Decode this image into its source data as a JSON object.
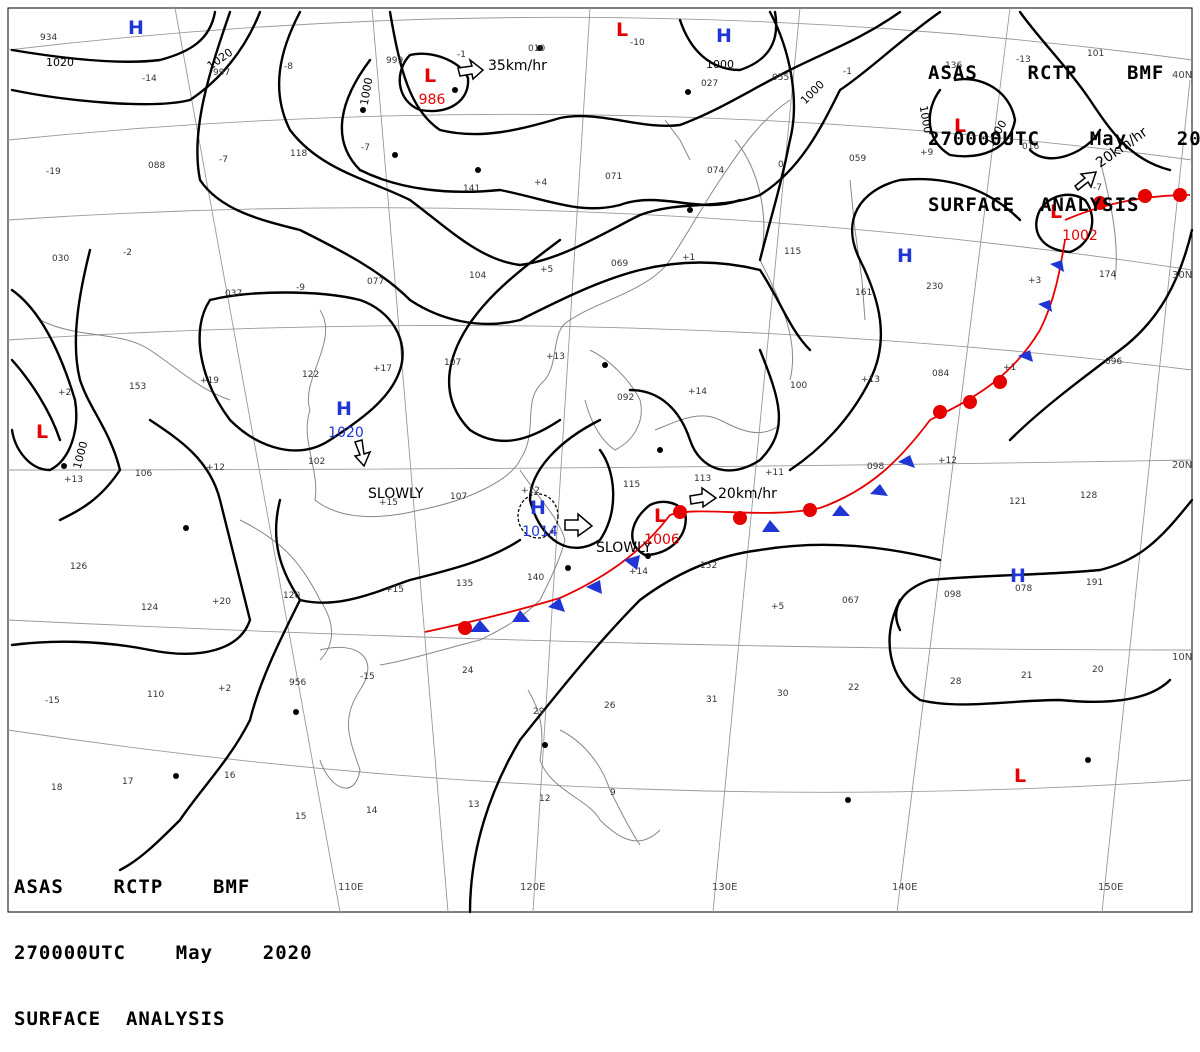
{
  "header": {
    "line1": "ASAS    RCTP    BMF",
    "line2": "270000UTC    May    2020",
    "line3": "SURFACE  ANALYSIS"
  },
  "colors": {
    "isobar": "#000000",
    "low": "#e60000",
    "high": "#1f35d6",
    "coast": "#888888",
    "grid": "#999999"
  },
  "lon_labels": [
    "110E",
    "120E",
    "130E",
    "140E",
    "150E"
  ],
  "lat_labels": [
    "40N",
    "30N",
    "20N",
    "10N"
  ],
  "pressure_centers": [
    {
      "type": "H",
      "value": ""
    },
    {
      "type": "L",
      "value": "986"
    },
    {
      "type": "H",
      "value": ""
    },
    {
      "type": "L",
      "value": ""
    },
    {
      "type": "L",
      "value": ""
    },
    {
      "type": "L",
      "value": "1002"
    },
    {
      "type": "H",
      "value": ""
    },
    {
      "type": "H",
      "value": "1020"
    },
    {
      "type": "L",
      "value": ""
    },
    {
      "type": "H",
      "value": "1014"
    },
    {
      "type": "L",
      "value": "1006"
    },
    {
      "type": "H",
      "value": ""
    },
    {
      "type": "L",
      "value": ""
    }
  ],
  "isobar_labels": [
    "1020",
    "1020",
    "1000",
    "1000",
    "1000",
    "1000",
    "1000",
    "1000"
  ],
  "motion_labels": [
    "35km/hr",
    "20km/hr",
    "20km/hr",
    "SLOWLY",
    "SLOWLY"
  ],
  "station_numbers": [
    "934",
    "-14",
    "997",
    "-8",
    "999",
    "-1",
    "010",
    "-10",
    "027",
    "055",
    "-1",
    "136",
    "-13",
    "101",
    "-19",
    "088",
    "-7",
    "118",
    "-7",
    "141",
    "+4",
    "071",
    "074",
    "0",
    "059",
    "+9",
    "016",
    "-7",
    "030",
    "-2",
    "037",
    "-9",
    "077",
    "104",
    "+5",
    "069",
    "+1",
    "115",
    "161",
    "230",
    "+3",
    "174",
    "+2",
    "153",
    "+19",
    "122",
    "+17",
    "107",
    "+13",
    "092",
    "+14",
    "100",
    "+13",
    "084",
    "+1",
    "096",
    "+13",
    "106",
    "+12",
    "102",
    "+15",
    "107",
    "+12",
    "115",
    "113",
    "+11",
    "098",
    "+12",
    "121",
    "128",
    "126",
    "124",
    "+20",
    "120",
    "+15",
    "135",
    "140",
    "+14",
    "152",
    "+5",
    "067",
    "098",
    "078",
    "191",
    "-15",
    "110",
    "+2",
    "956",
    "-15",
    "24",
    "29",
    "26",
    "31",
    "30",
    "22",
    "28",
    "21",
    "20",
    "18",
    "17",
    "16",
    "15",
    "14",
    "13",
    "12",
    "9"
  ]
}
